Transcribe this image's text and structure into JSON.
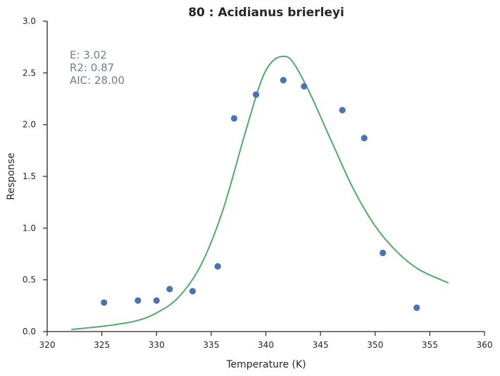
{
  "chart_data": {
    "type": "scatter",
    "title": "80 : Acidianus brierleyi",
    "xlabel": "Temperature (K)",
    "ylabel": "Response",
    "xlim": [
      320,
      360
    ],
    "ylim": [
      0.0,
      3.0
    ],
    "xticks": [
      "320",
      "325",
      "330",
      "335",
      "340",
      "345",
      "350",
      "355",
      "360"
    ],
    "yticks": [
      "0.0",
      "0.5",
      "1.0",
      "1.5",
      "2.0",
      "2.5",
      "3.0"
    ],
    "grid": false,
    "annotations": [
      "E:  3.02",
      "R2:  0.87",
      "AIC: 28.00"
    ],
    "colors": {
      "points": "#4c72b0",
      "fit": "#55a868",
      "annotation": "#6f7f8f"
    },
    "points": {
      "x": [
        325.2,
        328.3,
        330.0,
        331.2,
        333.3,
        335.6,
        337.1,
        339.1,
        341.6,
        343.5,
        347.0,
        349.0,
        350.7,
        353.8
      ],
      "y": [
        0.28,
        0.3,
        0.3,
        0.41,
        0.39,
        0.63,
        2.06,
        2.29,
        2.43,
        2.37,
        2.14,
        1.87,
        0.76,
        0.23
      ]
    },
    "fit_curve": {
      "x": [
        322.2,
        325,
        328,
        330,
        332,
        334,
        336,
        338,
        339.5,
        340.5,
        341.6,
        342.5,
        344,
        346,
        348,
        350,
        352,
        354,
        356.7
      ],
      "y": [
        0.02,
        0.05,
        0.1,
        0.18,
        0.33,
        0.63,
        1.15,
        1.88,
        2.4,
        2.6,
        2.66,
        2.6,
        2.31,
        1.84,
        1.38,
        1.02,
        0.77,
        0.6,
        0.47
      ]
    }
  }
}
